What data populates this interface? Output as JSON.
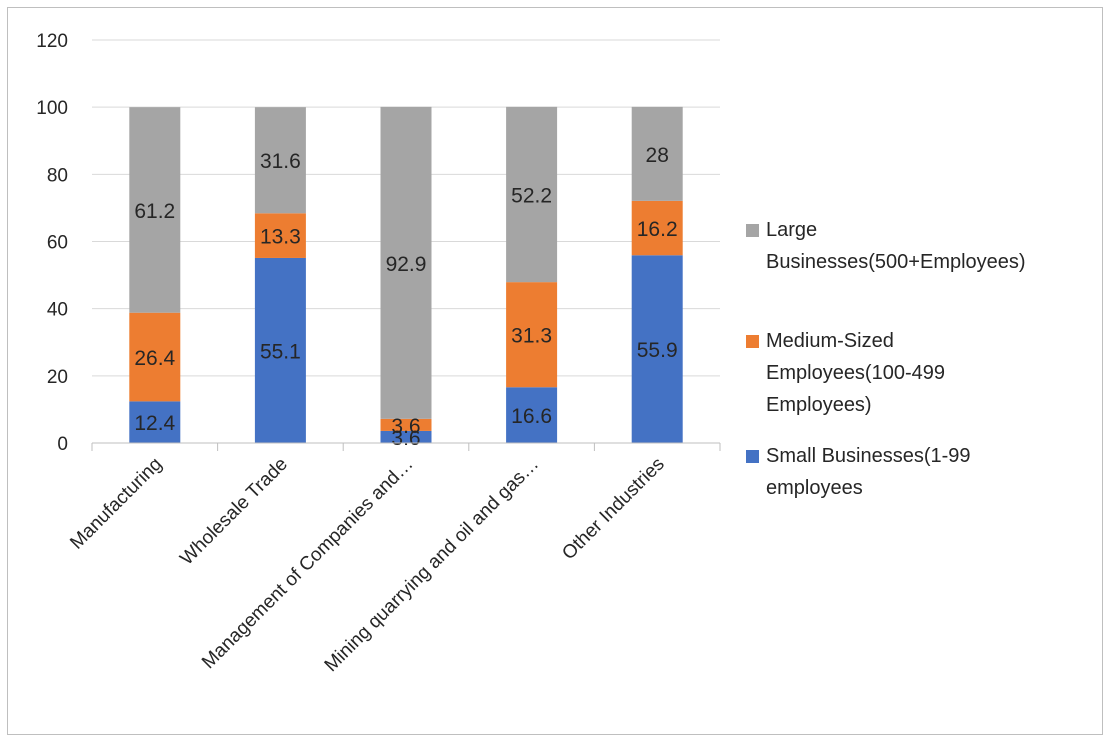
{
  "chart_data": {
    "type": "bar",
    "stacked": true,
    "title": "",
    "xlabel": "",
    "ylabel": "",
    "ylim": [
      0,
      120
    ],
    "yticks": [
      0,
      20,
      40,
      60,
      80,
      100,
      120
    ],
    "grid": true,
    "legend_position": "right",
    "categories": [
      "Manufacturing",
      "Wholesale Trade",
      "Management of Companies and…",
      "Mining quarrying and oil and gas…",
      "Other Industries"
    ],
    "series": [
      {
        "name": "Small Businesses(1-99 employees",
        "color": "#4472c4",
        "values": [
          12.4,
          55.1,
          3.6,
          16.6,
          55.9
        ]
      },
      {
        "name": "Medium-Sized Employees(100-499 Employees)",
        "color": "#ed7d31",
        "values": [
          26.4,
          13.3,
          3.6,
          31.3,
          16.2
        ]
      },
      {
        "name": "Large Businesses(500+Employees)",
        "color": "#a5a5a5",
        "values": [
          61.2,
          31.6,
          92.9,
          52.2,
          28
        ]
      }
    ],
    "legend": [
      {
        "lines": [
          "Large",
          "Businesses(500+Employees)"
        ],
        "color": "#a5a5a5"
      },
      {
        "lines": [
          "Medium-Sized",
          "Employees(100-499",
          "Employees)"
        ],
        "color": "#ed7d31"
      },
      {
        "lines": [
          "Small Businesses(1-99",
          "employees"
        ],
        "color": "#4472c4"
      }
    ]
  }
}
